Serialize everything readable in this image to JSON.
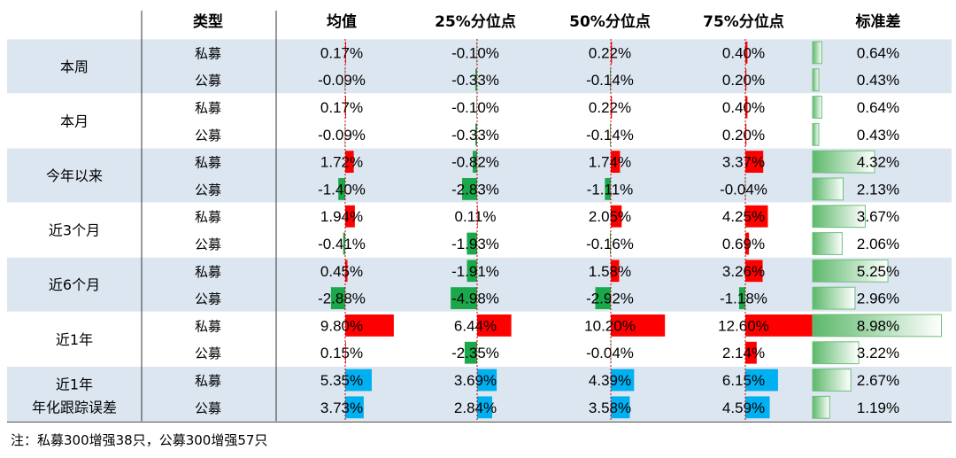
{
  "chart_data": {
    "type": "table",
    "columns": [
      "类型",
      "均值",
      "25%分位点",
      "50%分位点",
      "75%分位点",
      "标准差"
    ],
    "groups": [
      {
        "label": [
          "本周"
        ],
        "rows": [
          {
            "type": "私募",
            "mean": 0.17,
            "p25": -0.1,
            "p50": 0.22,
            "p75": 0.4,
            "std": 0.64
          },
          {
            "type": "公募",
            "mean": -0.09,
            "p25": -0.33,
            "p50": -0.14,
            "p75": 0.2,
            "std": 0.43
          }
        ]
      },
      {
        "label": [
          "本月"
        ],
        "rows": [
          {
            "type": "私募",
            "mean": 0.17,
            "p25": -0.1,
            "p50": 0.22,
            "p75": 0.4,
            "std": 0.64
          },
          {
            "type": "公募",
            "mean": -0.09,
            "p25": -0.33,
            "p50": -0.14,
            "p75": 0.2,
            "std": 0.43
          }
        ]
      },
      {
        "label": [
          "今年以来"
        ],
        "rows": [
          {
            "type": "私募",
            "mean": 1.72,
            "p25": -0.82,
            "p50": 1.74,
            "p75": 3.37,
            "std": 4.32
          },
          {
            "type": "公募",
            "mean": -1.4,
            "p25": -2.83,
            "p50": -1.11,
            "p75": -0.04,
            "std": 2.13
          }
        ]
      },
      {
        "label": [
          "近3个月"
        ],
        "rows": [
          {
            "type": "私募",
            "mean": 1.94,
            "p25": 0.11,
            "p50": 2.05,
            "p75": 4.25,
            "std": 3.67
          },
          {
            "type": "公募",
            "mean": -0.41,
            "p25": -1.93,
            "p50": -0.16,
            "p75": 0.69,
            "std": 2.06
          }
        ]
      },
      {
        "label": [
          "近6个月"
        ],
        "rows": [
          {
            "type": "私募",
            "mean": 0.45,
            "p25": -1.91,
            "p50": 1.58,
            "p75": 3.26,
            "std": 5.25
          },
          {
            "type": "公募",
            "mean": -2.88,
            "p25": -4.98,
            "p50": -2.92,
            "p75": -1.18,
            "std": 2.96
          }
        ]
      },
      {
        "label": [
          "近1年"
        ],
        "rows": [
          {
            "type": "私募",
            "mean": 9.8,
            "p25": 6.44,
            "p50": 10.2,
            "p75": 12.6,
            "std": 8.98
          },
          {
            "type": "公募",
            "mean": 0.15,
            "p25": -2.35,
            "p50": -0.04,
            "p75": 2.14,
            "std": 3.22
          }
        ]
      },
      {
        "label": [
          "近1年",
          "年化跟踪误差"
        ],
        "tracking": true,
        "rows": [
          {
            "type": "私募",
            "mean": 5.35,
            "p25": 3.69,
            "p50": 4.39,
            "p75": 6.15,
            "std": 2.67
          },
          {
            "type": "公募",
            "mean": 3.73,
            "p25": 2.84,
            "p50": 3.58,
            "p75": 4.59,
            "std": 1.19
          }
        ]
      }
    ]
  },
  "colors": {
    "row_band": "#dce6f1",
    "positive": "#ff0000",
    "negative": "#1aa84b",
    "tracking": "#00b0f0",
    "std_fill": "#6cbf7a",
    "axis_line": "#c00000"
  },
  "note": "注：私募300增强38只，公募300增强57只"
}
